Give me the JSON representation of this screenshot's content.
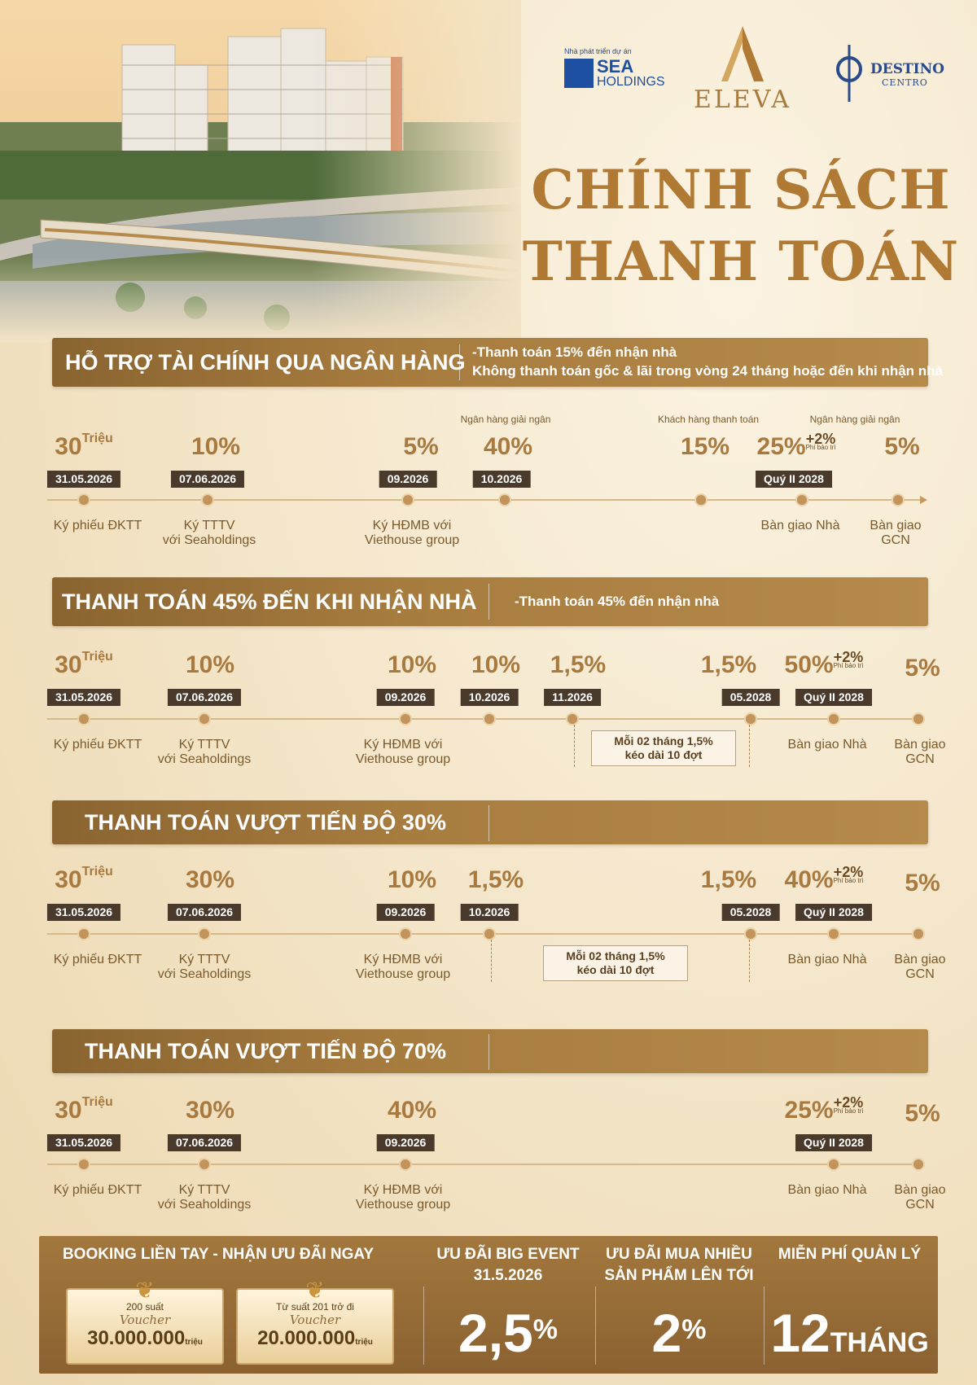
{
  "brand": {
    "developer_tagline": "Nhà phát triển dự án",
    "sea_line1": "SEA",
    "sea_line2": "HOLDINGS",
    "eleva": "ELEVA",
    "destino_line1": "DESTINO",
    "destino_line2": "CENTRO",
    "colors": {
      "gold": "#b07a34",
      "bar": "#a77c3f",
      "date_tag": "#4a3a2c"
    }
  },
  "title": {
    "line1": "CHÍNH SÁCH",
    "line2": "THANH TOÁN"
  },
  "sections": [
    {
      "heading": "HỖ TRỢ TÀI CHÍNH QUA NGÂN HÀNG",
      "desc_line1": "-Thanh toán 15% đến nhận nhà",
      "desc_line2": "Không thanh toán gốc & lãi trong vòng 24 tháng hoặc đến khi nhận nhà",
      "notes": [
        "Ngân hàng giải ngân",
        "Khách hàng thanh toán",
        "Ngân hàng giải ngân"
      ],
      "milestones": [
        {
          "pct": "30",
          "unit": "Triệu",
          "date": "31.05.2026",
          "label1": "Ký phiếu ĐKTT",
          "label2": ""
        },
        {
          "pct": "10%",
          "date": "07.06.2026",
          "label1": "Ký TTTV",
          "label2": "với Seaholdings"
        },
        {
          "pct": "5%",
          "date": "09.2026",
          "label1": "Ký HĐMB với",
          "label2": "Viethouse group"
        },
        {
          "pct": "40%",
          "date": "10.2026",
          "label1": "",
          "label2": ""
        },
        {
          "pct": "15%",
          "date": "",
          "label1": "",
          "label2": ""
        },
        {
          "pct": "25%",
          "plus": "+2%",
          "plus_note": "Phí bảo trì",
          "date": "Quý II 2028",
          "label1": "Bàn giao Nhà",
          "label2": ""
        },
        {
          "pct": "5%",
          "date": "",
          "label1": "Bàn giao",
          "label2": "GCN"
        }
      ]
    },
    {
      "heading": "THANH TOÁN 45% ĐẾN KHI NHẬN NHÀ",
      "desc_line1": "-Thanh toán 45% đến nhận nhà",
      "box_line1": "Mỗi 02 tháng 1,5%",
      "box_line2": "kéo dài 10 đợt",
      "milestones": [
        {
          "pct": "30",
          "unit": "Triệu",
          "date": "31.05.2026",
          "label1": "Ký phiếu ĐKTT",
          "label2": ""
        },
        {
          "pct": "10%",
          "date": "07.06.2026",
          "label1": "Ký TTTV",
          "label2": "với Seaholdings"
        },
        {
          "pct": "10%",
          "date": "09.2026",
          "label1": "Ký HĐMB với",
          "label2": "Viethouse group"
        },
        {
          "pct": "10%",
          "date": "10.2026",
          "label1": "",
          "label2": ""
        },
        {
          "pct": "1,5%",
          "date": "11.2026",
          "label1": "",
          "label2": ""
        },
        {
          "pct": "1,5%",
          "date": "05.2028",
          "label1": "",
          "label2": ""
        },
        {
          "pct": "50%",
          "plus": "+2%",
          "plus_note": "Phí bảo trì",
          "date": "Quý II 2028",
          "label1": "Bàn giao Nhà",
          "label2": ""
        },
        {
          "pct": "5%",
          "date": "",
          "label1": "Bàn giao",
          "label2": "GCN"
        }
      ]
    },
    {
      "heading": "THANH TOÁN VƯỢT TIẾN ĐỘ 30%",
      "box_line1": "Mỗi 02 tháng 1,5%",
      "box_line2": "kéo dài 10 đợt",
      "milestones": [
        {
          "pct": "30",
          "unit": "Triệu",
          "date": "31.05.2026",
          "label1": "Ký phiếu ĐKTT",
          "label2": ""
        },
        {
          "pct": "30%",
          "date": "07.06.2026",
          "label1": "Ký TTTV",
          "label2": "với Seaholdings"
        },
        {
          "pct": "10%",
          "date": "09.2026",
          "label1": "Ký HĐMB với",
          "label2": "Viethouse group"
        },
        {
          "pct": "1,5%",
          "date": "10.2026",
          "label1": "",
          "label2": ""
        },
        {
          "pct": "1,5%",
          "date": "05.2028",
          "label1": "",
          "label2": ""
        },
        {
          "pct": "40%",
          "plus": "+2%",
          "plus_note": "Phí bảo trì",
          "date": "Quý II 2028",
          "label1": "Bàn giao Nhà",
          "label2": ""
        },
        {
          "pct": "5%",
          "date": "",
          "label1": "Bàn giao",
          "label2": "GCN"
        }
      ]
    },
    {
      "heading": "THANH TOÁN VƯỢT TIẾN ĐỘ 70%",
      "milestones": [
        {
          "pct": "30",
          "unit": "Triệu",
          "date": "31.05.2026",
          "label1": "Ký phiếu ĐKTT",
          "label2": ""
        },
        {
          "pct": "30%",
          "date": "07.06.2026",
          "label1": "Ký TTTV",
          "label2": "với Seaholdings"
        },
        {
          "pct": "40%",
          "date": "09.2026",
          "label1": "Ký HĐMB với",
          "label2": "Viethouse group"
        },
        {
          "pct": "25%",
          "plus": "+2%",
          "plus_note": "Phí bảo trì",
          "date": "Quý II 2028",
          "label1": "Bàn giao Nhà",
          "label2": ""
        },
        {
          "pct": "5%",
          "date": "",
          "label1": "Bàn giao",
          "label2": "GCN"
        }
      ]
    }
  ],
  "footer": {
    "booking_heading": "BOOKING LIỀN TAY - NHẬN ƯU ĐÃI NGAY",
    "voucher1": {
      "top": "200 suất",
      "mid": "Voucher",
      "amount": "30.000.000",
      "unit": "triệu"
    },
    "voucher2": {
      "top": "Từ suất 201 trở đi",
      "mid": "Voucher",
      "amount": "20.000.000",
      "unit": "triệu"
    },
    "event_line1": "ƯU ĐÃI BIG EVENT",
    "event_line2": "31.5.2026",
    "event_value": "2,5",
    "event_unit": "%",
    "multi_line1": "ƯU ĐÃI  MUA NHIỀU",
    "multi_line2": "SẢN PHẨM LÊN TỚI",
    "multi_value": "2",
    "multi_unit": "%",
    "free_heading": "MIỄN PHÍ QUẢN LÝ",
    "free_value": "12",
    "free_unit": "THÁNG"
  }
}
